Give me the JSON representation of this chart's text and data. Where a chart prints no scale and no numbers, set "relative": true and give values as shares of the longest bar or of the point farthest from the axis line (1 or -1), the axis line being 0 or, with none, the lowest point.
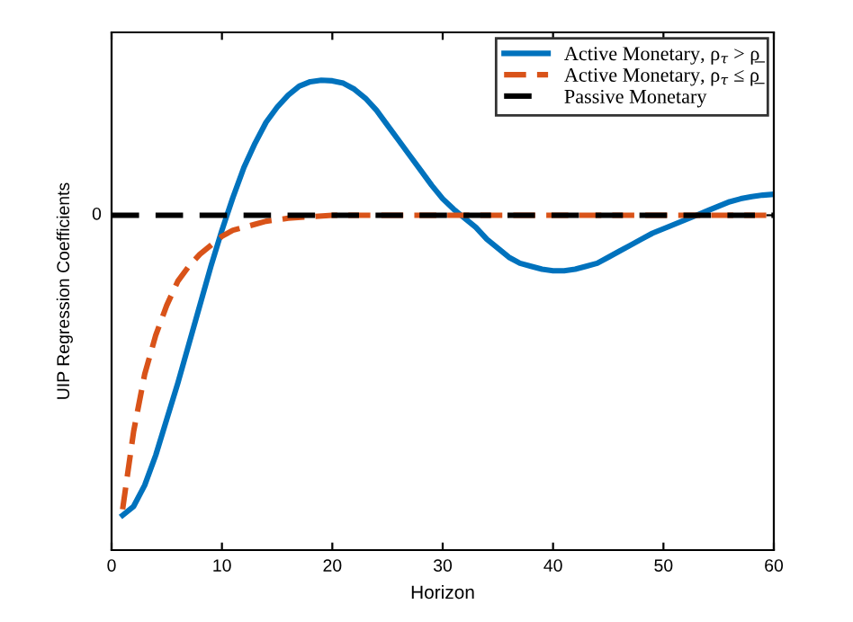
{
  "chart_data": {
    "type": "line",
    "xlabel": "Horizon",
    "ylabel": "UIP Regression Coefficients",
    "relative": true,
    "xlim": [
      0,
      60
    ],
    "xticks": [
      0,
      10,
      20,
      30,
      40,
      50,
      60
    ],
    "annotations": [
      "0"
    ],
    "legend": "top right",
    "grid": false,
    "marker": "none",
    "series": [
      {
        "name": "Active Monetary, ρ$_{τ}$ > ρ̲",
        "color": "#0072bd",
        "line_style": "solid",
        "x": [
          1,
          2,
          3,
          4,
          5,
          6,
          7,
          8,
          9,
          10,
          11,
          12,
          13,
          14,
          15,
          16,
          17,
          18,
          19,
          20,
          21,
          22,
          23,
          24,
          25,
          26,
          27,
          28,
          29,
          30,
          31,
          32,
          33,
          34,
          35,
          36,
          37,
          38,
          39,
          40,
          41,
          42,
          43,
          44,
          45,
          46,
          47,
          48,
          49,
          50,
          51,
          52,
          53,
          54,
          55,
          56,
          57,
          58,
          59,
          60
        ],
        "values": [
          -1.0,
          -0.97,
          -0.9,
          -0.8,
          -0.68,
          -0.56,
          -0.43,
          -0.3,
          -0.17,
          -0.05,
          0.06,
          0.16,
          0.24,
          0.31,
          0.36,
          0.4,
          0.43,
          0.445,
          0.45,
          0.448,
          0.44,
          0.42,
          0.39,
          0.35,
          0.3,
          0.25,
          0.2,
          0.15,
          0.1,
          0.055,
          0.02,
          -0.01,
          -0.04,
          -0.08,
          -0.11,
          -0.14,
          -0.16,
          -0.17,
          -0.18,
          -0.185,
          -0.185,
          -0.18,
          -0.17,
          -0.16,
          -0.14,
          -0.12,
          -0.1,
          -0.08,
          -0.06,
          -0.045,
          -0.03,
          -0.015,
          0.0,
          0.015,
          0.03,
          0.045,
          0.055,
          0.062,
          0.067,
          0.07
        ]
      },
      {
        "name": "Active Monetary, ρ$_{τ}$ ≤ ρ̲",
        "color": "#d95319",
        "line_style": "dashed",
        "x": [
          1,
          2,
          3,
          4,
          5,
          6,
          7,
          8,
          9,
          10,
          11,
          12,
          13,
          14,
          15,
          16,
          18,
          20,
          30,
          40,
          50,
          60
        ],
        "values": [
          -0.98,
          -0.72,
          -0.53,
          -0.4,
          -0.3,
          -0.22,
          -0.17,
          -0.13,
          -0.1,
          -0.07,
          -0.05,
          -0.04,
          -0.03,
          -0.02,
          -0.015,
          -0.01,
          -0.005,
          0,
          0,
          0,
          0,
          0
        ]
      },
      {
        "name": "Passive Monetary",
        "color": "#000000",
        "line_style": "dashed",
        "x": [
          0,
          60
        ],
        "values": [
          0,
          0
        ]
      }
    ]
  }
}
